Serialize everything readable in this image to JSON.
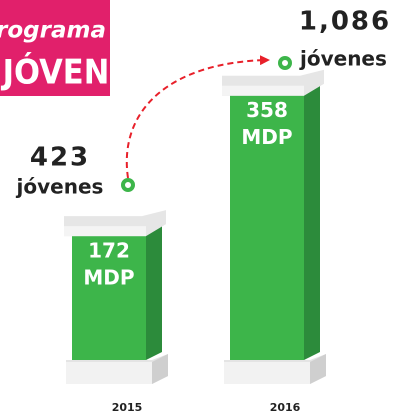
{
  "chart_data": {
    "type": "bar",
    "title": "Programa",
    "subtitle": "JÓVEN",
    "categories": [
      "2015",
      "2016"
    ],
    "values": [
      172,
      358
    ],
    "unit": "MDP",
    "color": "#3db54a",
    "beneficiaries": {
      "values": [
        423,
        1086
      ],
      "value_labels": [
        "423",
        "1,086"
      ],
      "label": "jóvenes"
    }
  }
}
